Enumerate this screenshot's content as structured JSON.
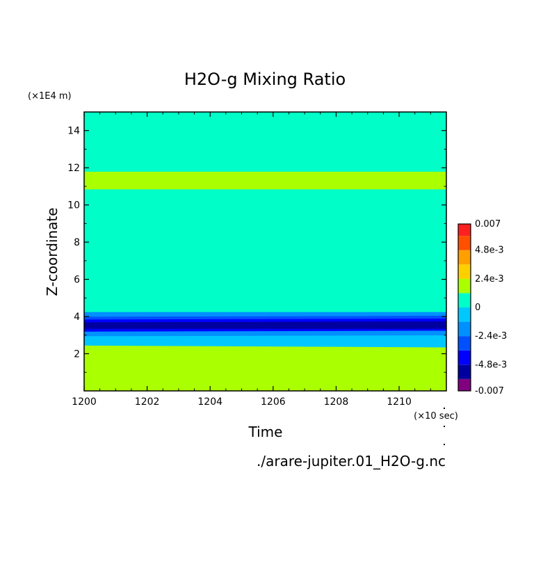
{
  "chart_data": {
    "type": "heatmap",
    "title": "H2O-g Mixing Ratio",
    "xlabel": "Time",
    "ylabel": "Z-coordinate",
    "x_unit": "(×10 sec)",
    "y_unit": "(×1E4 m)",
    "xlim": [
      1200,
      1211.5
    ],
    "ylim": [
      0,
      15
    ],
    "x_ticks": [
      1200,
      1202,
      1204,
      1206,
      1208,
      1210
    ],
    "y_ticks": [
      2,
      4,
      6,
      8,
      10,
      12,
      14
    ],
    "filename": "./arare-jupiter.01_H2O-g.nc",
    "colorbar": {
      "min": -0.007,
      "max": 0.007,
      "levels": [
        -0.007,
        -0.006,
        -0.0048,
        -0.0036,
        -0.0024,
        -0.0012,
        0,
        0.0012,
        0.0024,
        0.0036,
        0.0048,
        0.006,
        0.007
      ],
      "colors": [
        "#800080",
        "#0000a0",
        "#0000ff",
        "#0050ff",
        "#0090ff",
        "#00c8ff",
        "#00ffc8",
        "#aaff00",
        "#ffd000",
        "#ffa000",
        "#ff5000",
        "#ff2020",
        "#ffb0b0"
      ],
      "tick_values": [
        0.007,
        0.0048,
        0.0024,
        0,
        -0.0024,
        -0.0048,
        -0.007
      ],
      "tick_labels": [
        "0.007",
        "4.8e-3",
        "2.4e-3",
        "0",
        "-2.4e-3",
        "-4.8e-3",
        "-0.007"
      ]
    },
    "bands": [
      {
        "level_index": 7,
        "z_bottom_start": 0,
        "z_bottom_end": 0,
        "z_top_start": 2.45,
        "z_top_end": 2.35
      },
      {
        "level_index": 5,
        "z_bottom_start": 2.45,
        "z_bottom_end": 2.35,
        "z_top_start": 2.95,
        "z_top_end": 3.0
      },
      {
        "level_index": 4,
        "z_bottom_start": 2.95,
        "z_bottom_end": 3.0,
        "z_top_start": 3.2,
        "z_top_end": 3.25
      },
      {
        "level_index": 2,
        "z_bottom_start": 3.2,
        "z_bottom_end": 3.25,
        "z_top_start": 3.35,
        "z_top_end": 3.35
      },
      {
        "level_index": 1,
        "z_bottom_start": 3.35,
        "z_bottom_end": 3.35,
        "z_top_start": 3.7,
        "z_top_end": 3.75
      },
      {
        "level_index": 2,
        "z_bottom_start": 3.7,
        "z_bottom_end": 3.75,
        "z_top_start": 3.85,
        "z_top_end": 3.9
      },
      {
        "level_index": 3,
        "z_bottom_start": 3.85,
        "z_bottom_end": 3.9,
        "z_top_start": 4.0,
        "z_top_end": 4.05
      },
      {
        "level_index": 4,
        "z_bottom_start": 4.0,
        "z_bottom_end": 4.05,
        "z_top_start": 4.25,
        "z_top_end": 4.25
      },
      {
        "level_index": 6,
        "z_bottom_start": 4.25,
        "z_bottom_end": 4.25,
        "z_top_start": 10.85,
        "z_top_end": 10.85
      },
      {
        "level_index": 7,
        "z_bottom_start": 10.85,
        "z_bottom_end": 10.85,
        "z_top_start": 11.8,
        "z_top_end": 11.8
      },
      {
        "level_index": 6,
        "z_bottom_start": 11.8,
        "z_bottom_end": 11.8,
        "z_top_start": 15,
        "z_top_end": 15
      }
    ]
  }
}
